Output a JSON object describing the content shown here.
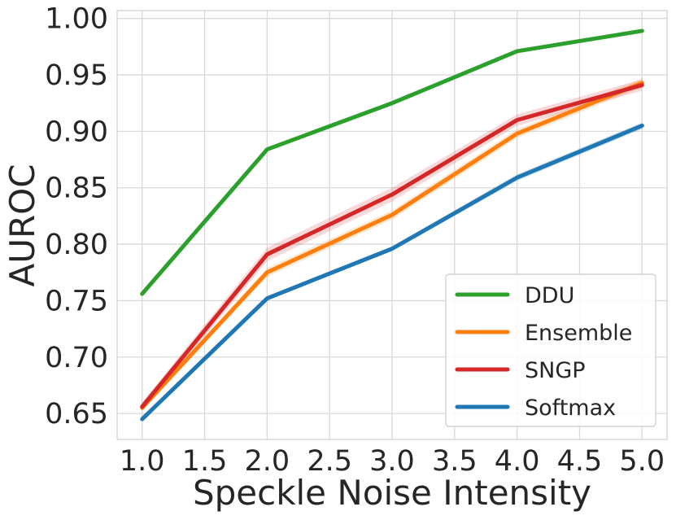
{
  "chart_data": {
    "type": "line",
    "title": "",
    "xlabel": "Speckle Noise Intensity",
    "ylabel": "AUROC",
    "x": [
      1.0,
      2.0,
      3.0,
      4.0,
      5.0
    ],
    "xlim": [
      0.8,
      5.2
    ],
    "ylim": [
      0.627,
      1.007
    ],
    "xticks": [
      "1.0",
      "1.5",
      "2.0",
      "2.5",
      "3.0",
      "3.5",
      "4.0",
      "4.5",
      "5.0"
    ],
    "yticks": [
      "0.65",
      "0.70",
      "0.75",
      "0.80",
      "0.85",
      "0.90",
      "0.95",
      "1.00"
    ],
    "grid": true,
    "legend_position": "bottom-right",
    "series": [
      {
        "name": "DDU",
        "color": "#2ca02c",
        "values": [
          0.756,
          0.884,
          0.925,
          0.971,
          0.989
        ],
        "band": [
          0.0,
          0.0,
          0.0,
          0.0,
          0.0
        ]
      },
      {
        "name": "Ensemble",
        "color": "#ff7f0e",
        "values": [
          0.655,
          0.775,
          0.826,
          0.898,
          0.943
        ],
        "band": [
          0.002,
          0.004,
          0.004,
          0.004,
          0.004
        ]
      },
      {
        "name": "SNGP",
        "color": "#d62728",
        "values": [
          0.656,
          0.791,
          0.844,
          0.91,
          0.941
        ],
        "band": [
          0.004,
          0.006,
          0.006,
          0.005,
          0.005
        ]
      },
      {
        "name": "Softmax",
        "color": "#1f77b4",
        "values": [
          0.645,
          0.752,
          0.796,
          0.859,
          0.905
        ],
        "band": [
          0.002,
          0.002,
          0.002,
          0.003,
          0.003
        ]
      }
    ]
  }
}
